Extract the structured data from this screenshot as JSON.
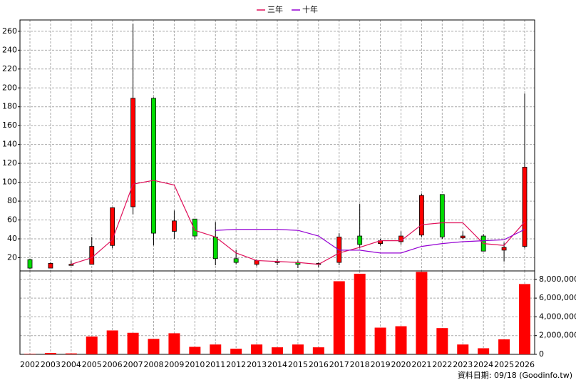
{
  "chart_data": [
    {
      "type": "candlestick",
      "categories": [
        "2002",
        "2003",
        "2004",
        "2005",
        "2006",
        "2007",
        "2008",
        "2009",
        "2010",
        "2011",
        "2012",
        "2013",
        "2014",
        "2015",
        "2016",
        "2017",
        "2018",
        "2019",
        "2020",
        "2021",
        "2022",
        "2023",
        "2024",
        "2025",
        "2026"
      ],
      "open": [
        18,
        9,
        12,
        13,
        33,
        74,
        189,
        48,
        61,
        42,
        19,
        13,
        15,
        15,
        13,
        15,
        43,
        35,
        37,
        44,
        87,
        41,
        43,
        28,
        32
      ],
      "high": [
        19,
        15,
        17,
        42,
        72,
        268,
        190,
        70,
        61,
        58,
        28,
        18,
        19,
        17,
        15,
        46,
        77,
        40,
        48,
        88,
        87,
        48,
        45,
        36,
        194
      ],
      "low": [
        8,
        9,
        12,
        13,
        30,
        66,
        33,
        40,
        39,
        12,
        13,
        11,
        12,
        9,
        10,
        12,
        30,
        33,
        34,
        42,
        40,
        40,
        27,
        16,
        30
      ],
      "close": [
        9,
        14,
        13,
        32,
        73,
        189,
        46,
        59,
        43,
        19,
        15,
        17,
        16,
        13,
        14,
        42,
        34,
        38,
        43,
        86,
        42,
        43,
        27,
        31,
        116
      ],
      "up_color": "#ff0000",
      "down_color": "#00dd00",
      "series": [
        {
          "name": "三年",
          "color": "#e0105a",
          "values": [
            null,
            null,
            13,
            20,
            39,
            98,
            102,
            97,
            49,
            42,
            25,
            17,
            16,
            15,
            13,
            25,
            31,
            38,
            38,
            55,
            57,
            57,
            35,
            33,
            58
          ]
        },
        {
          "name": "十年",
          "color": "#9400d3",
          "values": [
            null,
            null,
            null,
            null,
            null,
            null,
            null,
            null,
            null,
            49,
            50,
            50,
            50,
            49,
            43,
            28,
            28,
            25,
            25,
            32,
            35,
            37,
            38,
            39,
            50
          ]
        }
      ],
      "ylim": [
        6,
        272
      ],
      "yticks": [
        20,
        40,
        60,
        80,
        100,
        120,
        140,
        160,
        180,
        200,
        220,
        240,
        260
      ],
      "grid": true,
      "legend": "top"
    },
    {
      "type": "bar",
      "color": "#ff0000",
      "values": [
        50000,
        150000,
        100000,
        1900000,
        2550000,
        2300000,
        1650000,
        2250000,
        800000,
        1050000,
        600000,
        1050000,
        750000,
        1050000,
        750000,
        7800000,
        8600000,
        2850000,
        3000000,
        8800000,
        2800000,
        1050000,
        650000,
        1600000,
        7500000
      ],
      "ylim": [
        0,
        8900000
      ],
      "yticks": [
        0,
        {
          "value": 2000000,
          "label": "2,000,000"
        },
        {
          "value": 4000000,
          "label": "4,000,000"
        },
        {
          "value": 6000000,
          "label": "6,000,000"
        },
        {
          "value": 8000000,
          "label": "8,000,000"
        }
      ],
      "grid": true,
      "annotation": "資料日期: 09/18  (Goodinfo.tw)"
    }
  ]
}
